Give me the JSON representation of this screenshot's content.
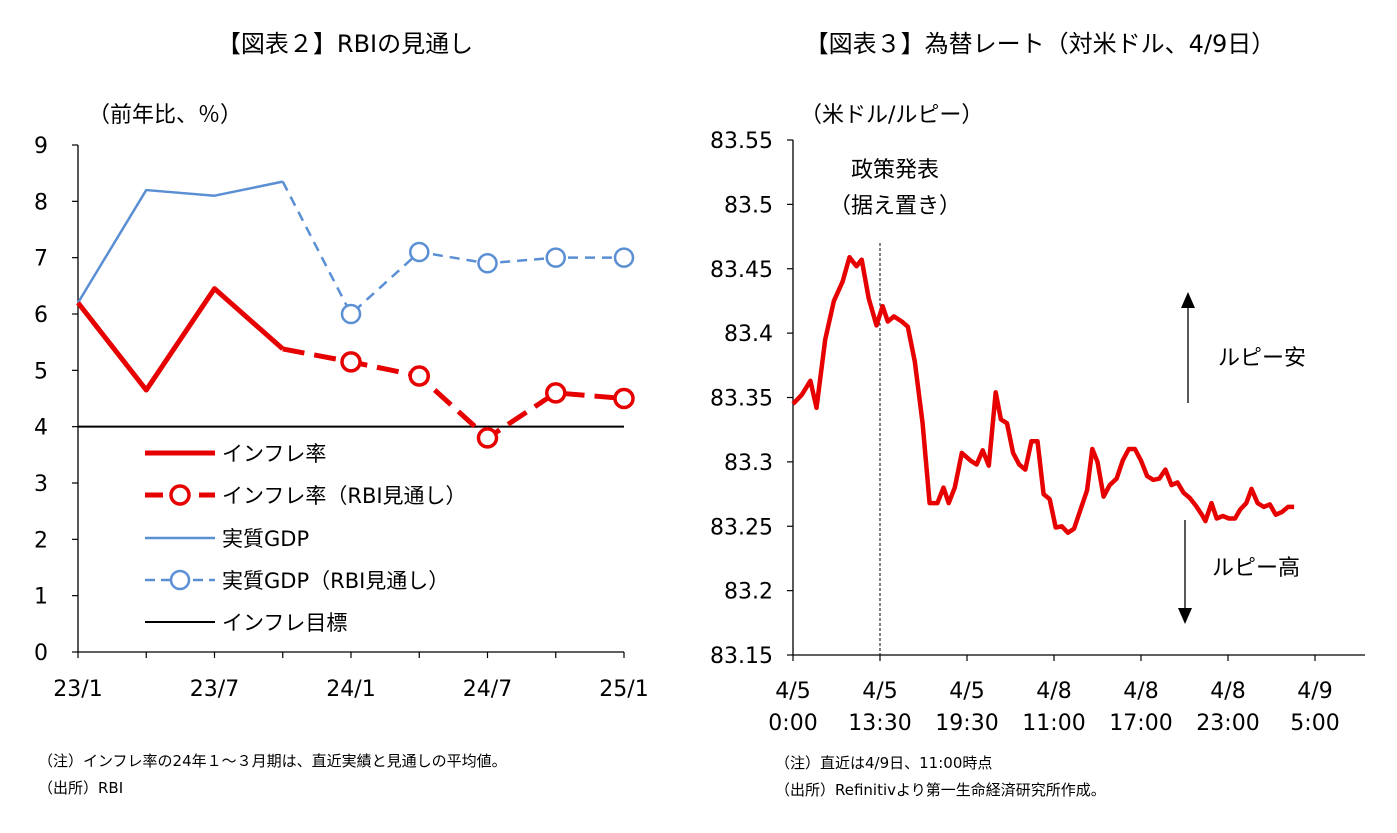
{
  "chart_data": [
    {
      "type": "line",
      "title": "【図表２】RBIの見通し",
      "ylabel": "（前年比、％）",
      "ylim": [
        0,
        9
      ],
      "yticks": [
        "0",
        "1",
        "2",
        "3",
        "4",
        "5",
        "6",
        "7",
        "8",
        "9"
      ],
      "x_labels": [
        "23/1",
        "23/7",
        "24/1",
        "24/7",
        "25/1"
      ],
      "x": [
        "23/1",
        "23/4",
        "23/7",
        "23/10",
        "24/1",
        "24/4",
        "24/7",
        "24/10",
        "25/1"
      ],
      "series": [
        {
          "name": "インフレ率",
          "values": [
            6.2,
            4.65,
            6.45,
            5.38,
            null,
            null,
            null,
            null,
            null
          ],
          "color": "#e60000",
          "style": "solid-thick"
        },
        {
          "name": "インフレ率（RBI見通し）",
          "values": [
            null,
            null,
            null,
            5.38,
            5.15,
            4.9,
            3.8,
            4.6,
            4.5
          ],
          "color": "#e60000",
          "style": "dashed-thick-marker"
        },
        {
          "name": "実質GDP",
          "values": [
            6.2,
            8.2,
            8.1,
            8.35,
            null,
            null,
            null,
            null,
            null
          ],
          "color": "#5b8fd4",
          "style": "solid-thin"
        },
        {
          "name": "実質GDP（RBI見通し）",
          "values": [
            null,
            null,
            null,
            8.35,
            6.0,
            7.1,
            6.9,
            7.0,
            7.0
          ],
          "color": "#5b8fd4",
          "style": "dashed-thin-marker"
        },
        {
          "name": "インフレ目標",
          "values": [
            4,
            4,
            4,
            4,
            4,
            4,
            4,
            4,
            4
          ],
          "color": "#000000",
          "style": "solid-thin"
        }
      ],
      "note": "（注）インフレ率の24年１～３月期は、直近実績と見通しの平均値。",
      "source": "（出所）RBI"
    },
    {
      "type": "line",
      "title": "【図表３】為替レート（対米ドル、4/9日）",
      "ylabel": "（米ドル/ルピー）",
      "ylim": [
        83.15,
        83.55
      ],
      "yticks": [
        "83.15",
        "83.2",
        "83.25",
        "83.3",
        "83.35",
        "83.4",
        "83.45",
        "83.5",
        "83.55"
      ],
      "x_labels": [
        {
          "line1": "4/5",
          "line2": "0:00"
        },
        {
          "line1": "4/5",
          "line2": "13:30"
        },
        {
          "line1": "4/5",
          "line2": "19:30"
        },
        {
          "line1": "4/8",
          "line2": "11:00"
        },
        {
          "line1": "4/8",
          "line2": "17:00"
        },
        {
          "line1": "4/8",
          "line2": "23:00"
        },
        {
          "line1": "4/9",
          "line2": "5:00"
        }
      ],
      "x_range": [
        0,
        6.8
      ],
      "series": [
        {
          "name": "USD/INR",
          "color": "#e60000",
          "points": [
            [
              0,
              83.345
            ],
            [
              0.1,
              83.352
            ],
            [
              0.2,
              83.363
            ],
            [
              0.27,
              83.342
            ],
            [
              0.37,
              83.395
            ],
            [
              0.47,
              83.425
            ],
            [
              0.57,
              83.44
            ],
            [
              0.65,
              83.459
            ],
            [
              0.73,
              83.452
            ],
            [
              0.79,
              83.457
            ],
            [
              0.87,
              83.427
            ],
            [
              0.96,
              83.406
            ],
            [
              1.03,
              83.421
            ],
            [
              1.09,
              83.409
            ],
            [
              1.16,
              83.413
            ],
            [
              1.25,
              83.409
            ],
            [
              1.32,
              83.405
            ],
            [
              1.4,
              83.378
            ],
            [
              1.49,
              83.33
            ],
            [
              1.57,
              83.268
            ],
            [
              1.66,
              83.268
            ],
            [
              1.73,
              83.28
            ],
            [
              1.79,
              83.268
            ],
            [
              1.86,
              83.28
            ],
            [
              1.94,
              83.307
            ],
            [
              2.04,
              83.301
            ],
            [
              2.11,
              83.298
            ],
            [
              2.18,
              83.309
            ],
            [
              2.25,
              83.297
            ],
            [
              2.33,
              83.354
            ],
            [
              2.39,
              83.333
            ],
            [
              2.46,
              83.33
            ],
            [
              2.53,
              83.307
            ],
            [
              2.6,
              83.298
            ],
            [
              2.67,
              83.294
            ],
            [
              2.74,
              83.316
            ],
            [
              2.81,
              83.316
            ],
            [
              2.88,
              83.275
            ],
            [
              2.95,
              83.271
            ],
            [
              3.02,
              83.249
            ],
            [
              3.09,
              83.25
            ],
            [
              3.16,
              83.245
            ],
            [
              3.23,
              83.248
            ],
            [
              3.3,
              83.262
            ],
            [
              3.38,
              83.278
            ],
            [
              3.44,
              83.31
            ],
            [
              3.5,
              83.3
            ],
            [
              3.57,
              83.273
            ],
            [
              3.64,
              83.282
            ],
            [
              3.72,
              83.287
            ],
            [
              3.79,
              83.301
            ],
            [
              3.86,
              83.31
            ],
            [
              3.93,
              83.31
            ],
            [
              4.0,
              83.301
            ],
            [
              4.07,
              83.289
            ],
            [
              4.14,
              83.286
            ],
            [
              4.21,
              83.287
            ],
            [
              4.28,
              83.294
            ],
            [
              4.35,
              83.282
            ],
            [
              4.42,
              83.284
            ],
            [
              4.49,
              83.276
            ],
            [
              4.56,
              83.272
            ],
            [
              4.63,
              83.266
            ],
            [
              4.7,
              83.259
            ],
            [
              4.74,
              83.254
            ],
            [
              4.81,
              83.268
            ],
            [
              4.87,
              83.256
            ],
            [
              4.94,
              83.258
            ],
            [
              5.01,
              83.256
            ],
            [
              5.08,
              83.256
            ],
            [
              5.14,
              83.263
            ],
            [
              5.21,
              83.268
            ],
            [
              5.27,
              83.279
            ],
            [
              5.34,
              83.268
            ],
            [
              5.41,
              83.265
            ],
            [
              5.48,
              83.267
            ],
            [
              5.55,
              83.259
            ],
            [
              5.62,
              83.261
            ],
            [
              5.69,
              83.265
            ],
            [
              5.76,
              83.265
            ]
          ]
        }
      ],
      "event_line_x": 1.0,
      "annotations": {
        "event_line1": "政策発表",
        "event_line2": "（据え置き）",
        "up_label": "ルピー安",
        "down_label": "ルピー高"
      },
      "note": "（注）直近は4/9日、11:00時点",
      "source": "（出所）Refinitivより第一生命経済研究所作成。"
    }
  ]
}
